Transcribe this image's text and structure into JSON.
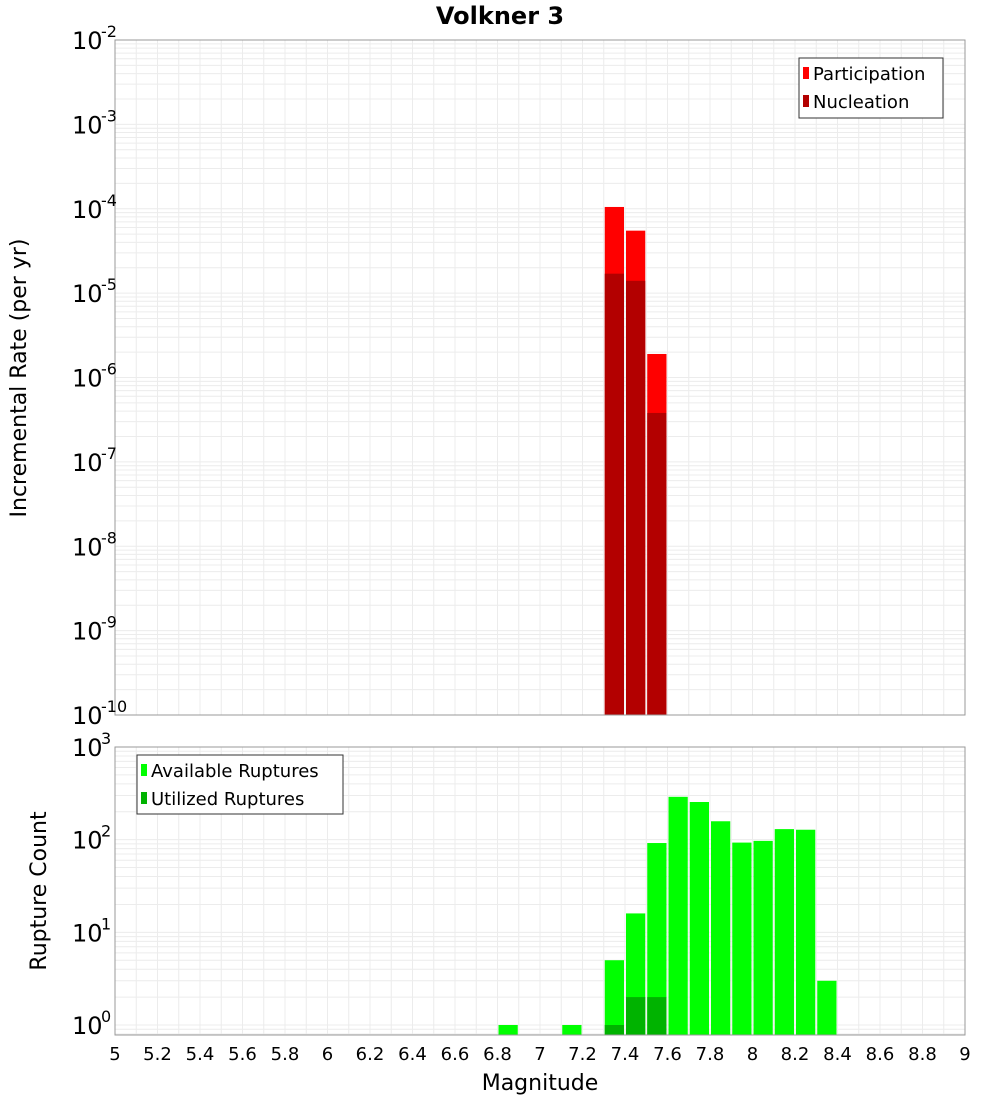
{
  "chart_data": [
    {
      "type": "bar",
      "title": "Volkner 3",
      "ylabel": "Incremental Rate (per yr)",
      "xlabel": "",
      "xlim": [
        5,
        9
      ],
      "ylim": [
        1e-10,
        0.01
      ],
      "yscale": "log",
      "ytick_exponents": [
        "-2",
        "-3",
        "-4",
        "-5",
        "-6",
        "-7",
        "-8",
        "-9",
        "-10"
      ],
      "legend_position": "top-right",
      "bin_width": 0.1,
      "series": [
        {
          "name": "Participation",
          "color": "#ff0000",
          "x": [
            7.35,
            7.45,
            7.55
          ],
          "values": [
            0.000105,
            5.5e-05,
            1.9e-06
          ]
        },
        {
          "name": "Nucleation",
          "color": "#b30000",
          "x": [
            7.35,
            7.45,
            7.55
          ],
          "values": [
            1.7e-05,
            1.4e-05,
            3.8e-07
          ]
        }
      ]
    },
    {
      "type": "bar",
      "title": "",
      "ylabel": "Rupture Count",
      "xlabel": "Magnitude",
      "xlim": [
        5,
        9
      ],
      "ylim": [
        0.78,
        1000
      ],
      "yscale": "log",
      "ytick_exponents": [
        "3",
        "2",
        "1",
        "0"
      ],
      "legend_position": "top-left",
      "bin_width": 0.1,
      "series": [
        {
          "name": "Available Ruptures",
          "color": "#00ff00",
          "x": [
            6.85,
            7.15,
            7.35,
            7.45,
            7.55,
            7.65,
            7.75,
            7.85,
            7.95,
            8.05,
            8.15,
            8.25,
            8.35
          ],
          "values": [
            1,
            1,
            5,
            16,
            92,
            290,
            255,
            158,
            93,
            97,
            130,
            128,
            3
          ]
        },
        {
          "name": "Utilized Ruptures",
          "color": "#00b300",
          "x": [
            7.35,
            7.45,
            7.55
          ],
          "values": [
            1,
            2,
            2
          ]
        }
      ],
      "xtick_labels": [
        "5",
        "5.2",
        "5.4",
        "5.6",
        "5.8",
        "6",
        "6.2",
        "6.4",
        "6.6",
        "6.8",
        "7",
        "7.2",
        "7.4",
        "7.6",
        "7.8",
        "8",
        "8.2",
        "8.4",
        "8.6",
        "8.8",
        "9"
      ]
    }
  ]
}
